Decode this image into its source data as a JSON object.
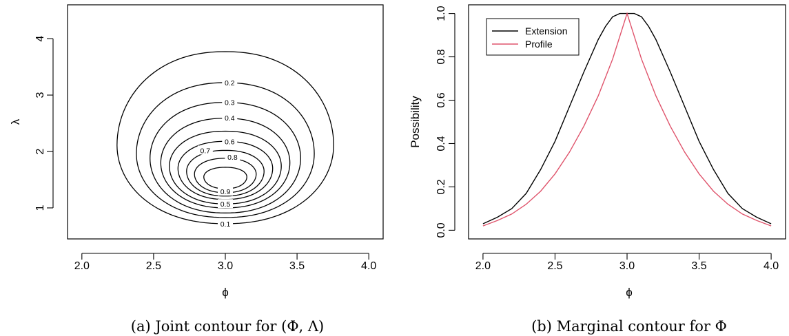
{
  "chart_data": [
    {
      "type": "contour",
      "caption": "(a) Joint contour for (Φ, Λ)",
      "xlabel": "ϕ",
      "ylabel": "λ",
      "xlim": [
        1.9,
        4.1
      ],
      "ylim": [
        0.45,
        4.6
      ],
      "xticks": [
        2.0,
        2.5,
        3.0,
        3.5,
        4.0
      ],
      "xtick_labels": [
        "2.0",
        "2.5",
        "3.0",
        "3.5",
        "4.0"
      ],
      "yticks": [
        1,
        2,
        3,
        4
      ],
      "ytick_labels": [
        "1",
        "2",
        "3",
        "4"
      ],
      "levels": [
        {
          "level": 0.1,
          "label": "0.1",
          "center": [
            3.0,
            2.11
          ],
          "half_width": 0.755,
          "half_height_top": 1.66,
          "half_height_bottom": 1.39,
          "labeled": false
        },
        {
          "level": 0.2,
          "label": "0.2",
          "center": [
            3.0,
            1.96
          ],
          "half_width": 0.62,
          "half_height_top": 1.26,
          "half_height_bottom": 1.13,
          "labeled": true
        },
        {
          "level": 0.3,
          "label": "0.3",
          "center": [
            3.0,
            1.88
          ],
          "half_width": 0.525,
          "half_height_top": 0.99,
          "half_height_bottom": 0.97,
          "labeled": true
        },
        {
          "level": 0.4,
          "label": "0.4",
          "center": [
            3.0,
            1.8
          ],
          "half_width": 0.45,
          "half_height_top": 0.79,
          "half_height_bottom": 0.8,
          "labeled": true
        },
        {
          "level": 0.5,
          "label": "0.5",
          "center": [
            3.0,
            1.74
          ],
          "half_width": 0.39,
          "half_height_top": 0.62,
          "half_height_bottom": 0.67,
          "labeled": false
        },
        {
          "level": 0.6,
          "label": "0.6",
          "center": [
            3.0,
            1.7
          ],
          "half_width": 0.33,
          "half_height_top": 0.48,
          "half_height_bottom": 0.55,
          "labeled": true
        },
        {
          "level": 0.7,
          "label": "0.7",
          "center": [
            3.0,
            1.65
          ],
          "half_width": 0.27,
          "half_height_top": 0.37,
          "half_height_bottom": 0.44,
          "labeled": true
        },
        {
          "level": 0.8,
          "label": "0.8",
          "center": [
            3.0,
            1.6
          ],
          "half_width": 0.215,
          "half_height_top": 0.28,
          "half_height_bottom": 0.33,
          "labeled": true
        },
        {
          "level": 0.9,
          "label": "0.9",
          "center": [
            3.0,
            1.55
          ],
          "half_width": 0.15,
          "half_height_top": 0.17,
          "half_height_bottom": 0.21,
          "labeled": true
        }
      ],
      "label_points": [
        {
          "text": "0.2",
          "x": 3.03,
          "y": 3.22
        },
        {
          "text": "0.3",
          "x": 3.03,
          "y": 2.87
        },
        {
          "text": "0.4",
          "x": 3.03,
          "y": 2.6
        },
        {
          "text": "0.6",
          "x": 3.03,
          "y": 2.18
        },
        {
          "text": "0.7",
          "x": 2.86,
          "y": 2.02
        },
        {
          "text": "0.8",
          "x": 3.05,
          "y": 1.9
        },
        {
          "text": "0.9",
          "x": 3.0,
          "y": 1.29
        },
        {
          "text": "0.5",
          "x": 3.0,
          "y": 1.07
        },
        {
          "text": "0.1",
          "x": 3.0,
          "y": 0.72
        }
      ]
    },
    {
      "type": "line",
      "caption": "(b) Marginal contour for Φ",
      "xlabel": "ϕ",
      "ylabel": "Possibility",
      "xlim": [
        1.9,
        4.1
      ],
      "ylim": [
        -0.04,
        1.04
      ],
      "xticks": [
        2.0,
        2.5,
        3.0,
        3.5,
        4.0
      ],
      "xtick_labels": [
        "2.0",
        "2.5",
        "3.0",
        "3.5",
        "4.0"
      ],
      "yticks": [
        0.0,
        0.2,
        0.4,
        0.6,
        0.8,
        1.0
      ],
      "ytick_labels": [
        "0.0",
        "0.2",
        "0.4",
        "0.6",
        "0.8",
        "1.0"
      ],
      "legend_position": "top-left",
      "series": [
        {
          "name": "Extension",
          "color": "#000000",
          "x": [
            2.0,
            2.1,
            2.2,
            2.3,
            2.4,
            2.5,
            2.6,
            2.7,
            2.8,
            2.85,
            2.9,
            2.95,
            3.0,
            3.05,
            3.1,
            3.15,
            3.2,
            3.3,
            3.4,
            3.5,
            3.6,
            3.7,
            3.8,
            3.9,
            4.0
          ],
          "y": [
            0.03,
            0.06,
            0.1,
            0.17,
            0.28,
            0.41,
            0.57,
            0.73,
            0.88,
            0.94,
            0.985,
            1.0,
            1.0,
            1.0,
            0.985,
            0.94,
            0.88,
            0.73,
            0.57,
            0.41,
            0.28,
            0.17,
            0.1,
            0.06,
            0.03
          ]
        },
        {
          "name": "Profile",
          "color": "#df536b",
          "x": [
            2.0,
            2.1,
            2.2,
            2.3,
            2.4,
            2.5,
            2.6,
            2.7,
            2.8,
            2.9,
            3.0,
            3.1,
            3.2,
            3.3,
            3.4,
            3.5,
            3.6,
            3.7,
            3.8,
            3.9,
            4.0
          ],
          "y": [
            0.02,
            0.045,
            0.075,
            0.12,
            0.18,
            0.26,
            0.36,
            0.48,
            0.62,
            0.79,
            1.0,
            0.79,
            0.62,
            0.48,
            0.36,
            0.26,
            0.18,
            0.12,
            0.075,
            0.045,
            0.02
          ]
        }
      ]
    }
  ]
}
